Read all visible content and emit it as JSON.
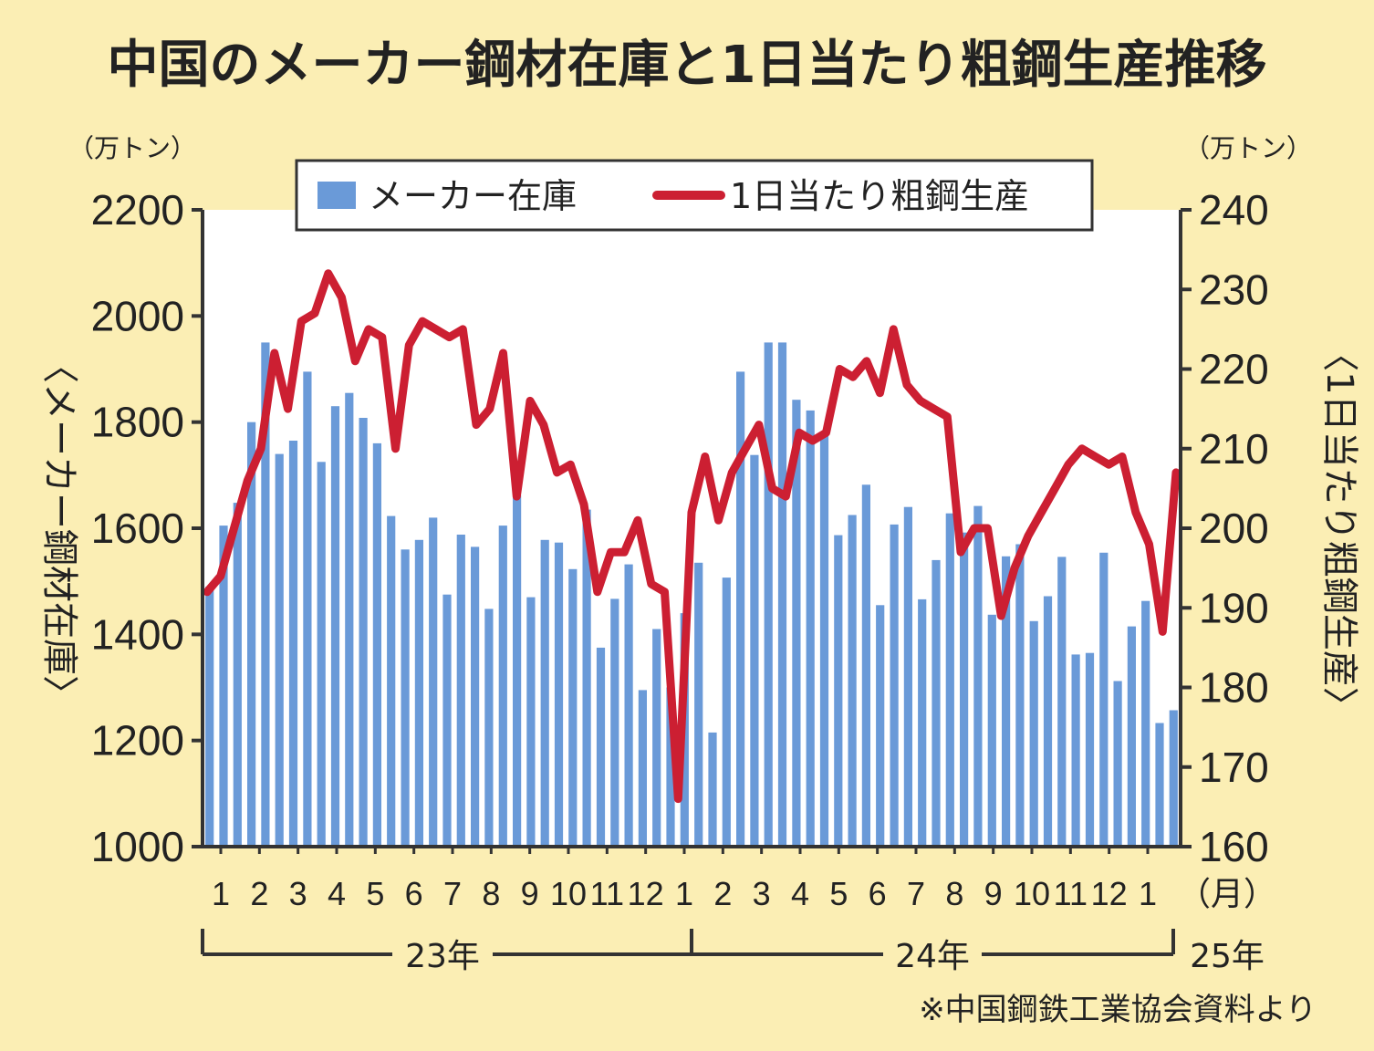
{
  "title": "中国のメーカー鋼材在庫と1日当たり粗鋼生産推移",
  "source": "※中国鋼鉄工業協会資料より",
  "chart_data": {
    "type": "bar+line",
    "title": "中国のメーカー鋼材在庫と1日当たり粗鋼生産推移",
    "left_axis": {
      "unit": "（万トン）",
      "label": "〈メーカー鋼材在庫〉",
      "ylim": [
        1000,
        2200
      ],
      "ticks": [
        1000,
        1200,
        1400,
        1600,
        1800,
        2000,
        2200
      ]
    },
    "right_axis": {
      "unit": "（万トン）",
      "label": "〈1日当たり粗鋼生産〉",
      "ylim": [
        160,
        240
      ],
      "ticks": [
        160,
        170,
        180,
        190,
        200,
        210,
        220,
        230,
        240
      ]
    },
    "month_ticks": [
      "1",
      "2",
      "3",
      "4",
      "5",
      "6",
      "7",
      "8",
      "9",
      "10",
      "11",
      "12",
      "1",
      "2",
      "3",
      "4",
      "5",
      "6",
      "7",
      "8",
      "9",
      "10",
      "11",
      "12",
      "1"
    ],
    "month_unit": "（月）",
    "years": [
      "23年",
      "24年",
      "25年"
    ],
    "legend": {
      "position": "top",
      "items": [
        "メーカー在庫",
        "1日当たり粗鋼生産"
      ]
    },
    "colors": {
      "bars": "#6a9ad8",
      "line": "#cc1f32",
      "plot_bg": "#ffffff",
      "page_bg": "#fbeeb4"
    },
    "series": [
      {
        "name": "メーカー在庫",
        "kind": "bar",
        "axis": "left",
        "values": [
          1490,
          1605,
          1648,
          1800,
          1950,
          1740,
          1765,
          1895,
          1725,
          1830,
          1855,
          1808,
          1760,
          1623,
          1560,
          1578,
          1620,
          1475,
          1588,
          1565,
          1448,
          1605,
          1662,
          1470,
          1578,
          1573,
          1523,
          1635,
          1375,
          1467,
          1532,
          1295,
          1410,
          1300,
          1440,
          1535,
          1215,
          1507,
          1895,
          1738,
          1950,
          1950,
          1842,
          1822,
          1775,
          1587,
          1625,
          1682,
          1455,
          1607,
          1640,
          1466,
          1540,
          1628,
          1592,
          1642,
          1437,
          1547,
          1570,
          1425,
          1472,
          1546,
          1362,
          1365,
          1554,
          1312,
          1415,
          1463,
          1233,
          1257
        ]
      },
      {
        "name": "1日当たり粗鋼生産",
        "kind": "line",
        "axis": "right",
        "values": [
          192,
          194,
          200,
          206,
          210,
          222,
          215,
          226,
          227,
          232,
          229,
          221,
          225,
          224,
          210,
          223,
          226,
          225,
          224,
          225,
          213,
          215,
          222,
          204,
          216,
          213,
          207,
          208,
          203,
          192,
          197,
          197,
          201,
          193,
          192,
          166,
          202,
          209,
          201,
          207,
          210,
          213,
          205,
          204,
          212,
          211,
          212,
          220,
          219,
          221,
          217,
          225,
          218,
          216,
          215,
          214,
          197,
          200,
          200,
          189,
          195,
          199,
          202,
          205,
          208,
          210,
          209,
          208,
          209,
          202,
          198,
          187,
          207
        ]
      }
    ]
  }
}
